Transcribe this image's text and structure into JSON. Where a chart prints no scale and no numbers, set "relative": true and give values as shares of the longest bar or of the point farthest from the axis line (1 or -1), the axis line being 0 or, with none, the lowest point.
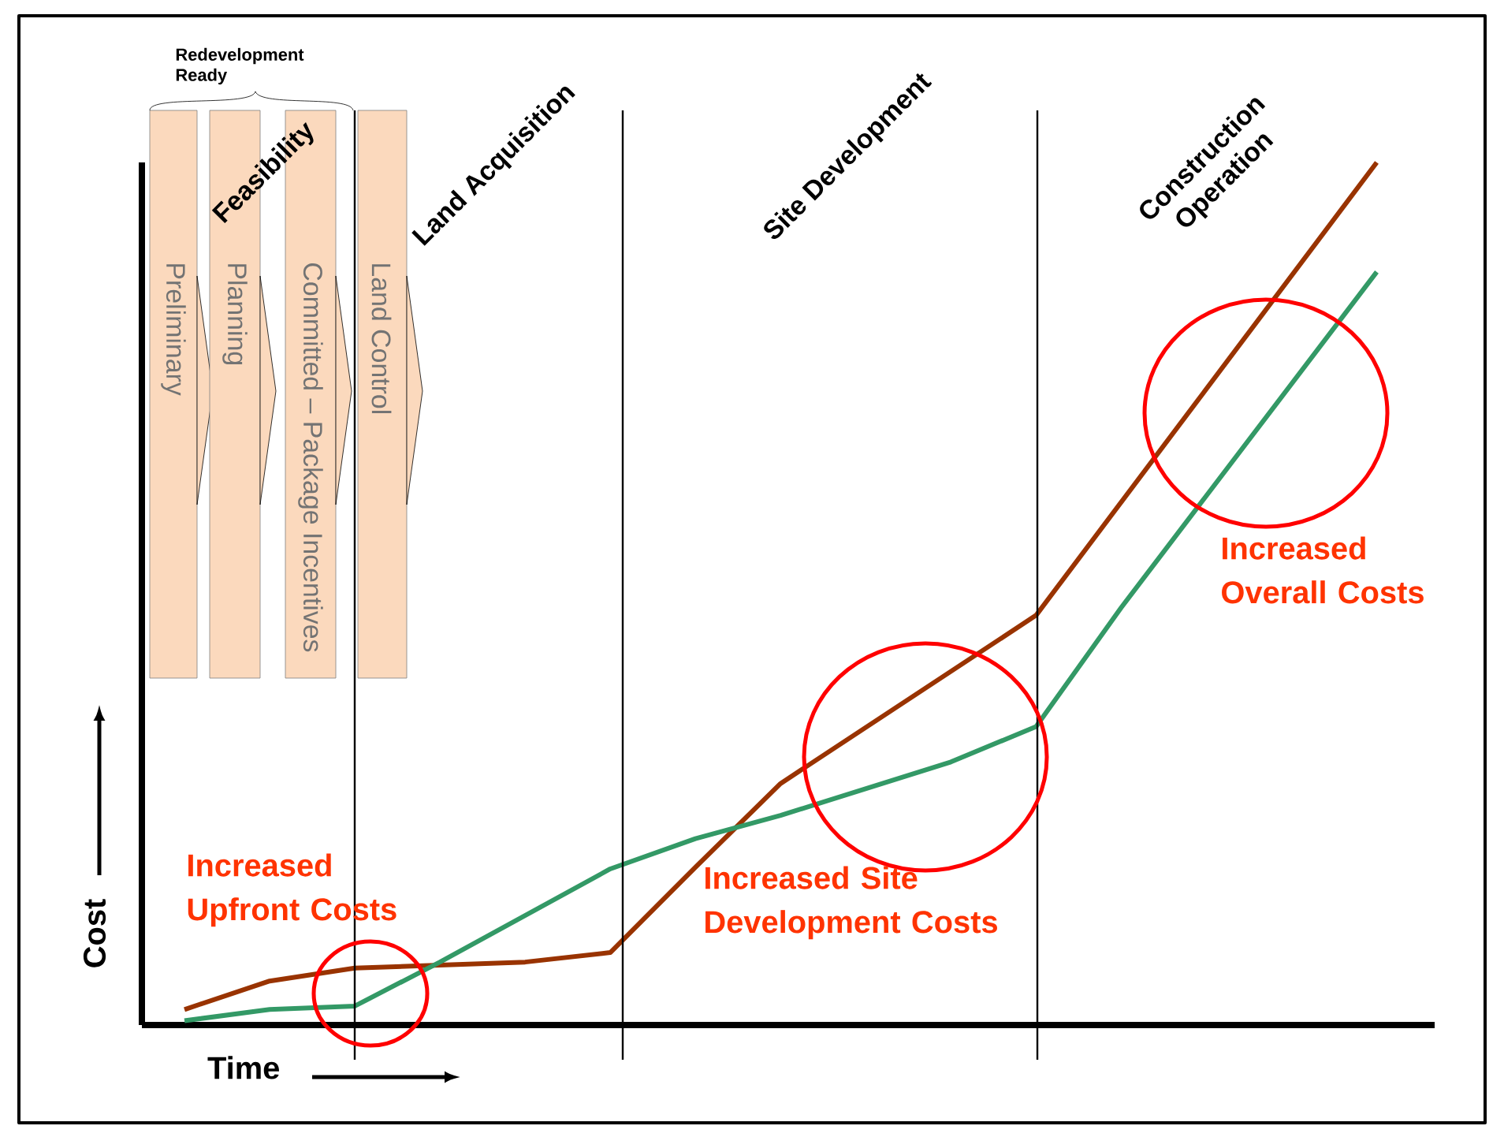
{
  "chart_data": {
    "type": "line",
    "relative": true,
    "xlabel": "Time",
    "ylabel": "Cost",
    "tick_labels": false,
    "categories": [
      null,
      null,
      null,
      null,
      null,
      null,
      null,
      null,
      null,
      null,
      null,
      null,
      null,
      null,
      null
    ],
    "series": [
      {
        "color": "#993300",
        "values": [
          0.018,
          0.051,
          0.066,
          null,
          0.073,
          0.084,
          0.183,
          0.28,
          null,
          null,
          0.475,
          null,
          null,
          null,
          1.0
        ]
      },
      {
        "color": "#339966",
        "values": [
          0.005,
          0.018,
          0.022,
          0.073,
          null,
          0.181,
          0.216,
          0.243,
          null,
          0.305,
          0.346,
          0.484,
          null,
          null,
          0.873
        ]
      }
    ],
    "annotations": [
      "Redevelopment Ready",
      "Preliminary",
      "Planning",
      "Committed – Package Incentives",
      "Land Control",
      "Feasibility",
      "Land Acquisition",
      "Site Development",
      "Construction Operation",
      "Increased Upfront Costs",
      "Increased Site Development Costs",
      "Increased Overall Costs"
    ]
  }
}
